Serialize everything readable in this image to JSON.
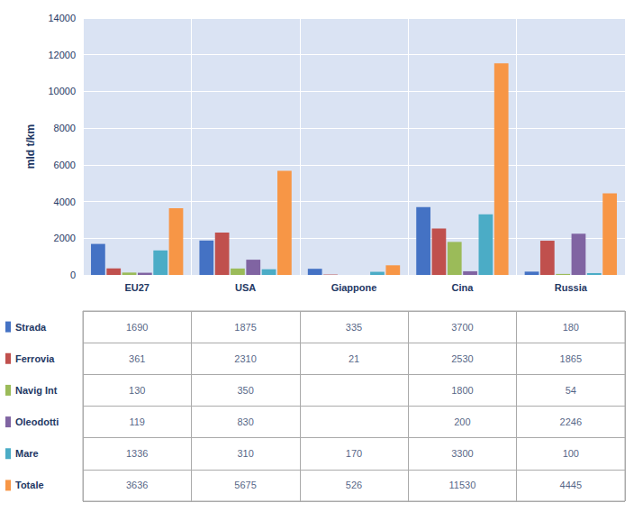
{
  "chart_data": {
    "type": "bar",
    "ylabel": "mld t/km",
    "categories": [
      "EU27",
      "USA",
      "Giappone",
      "Cina",
      "Russia"
    ],
    "series": [
      {
        "name": "Strada",
        "color": "#4472C4",
        "values": [
          1690,
          1875,
          335,
          3700,
          180
        ],
        "value_labels": [
          "1690",
          "1875",
          "335",
          "3700",
          "180"
        ]
      },
      {
        "name": "Ferrovia",
        "color": "#C0504D",
        "values": [
          361,
          2310,
          21,
          2530,
          1865
        ],
        "value_labels": [
          "361",
          "2310",
          "21",
          "2530",
          "1865"
        ]
      },
      {
        "name": "Navig Int",
        "color": "#9BBB59",
        "values": [
          130,
          350,
          0,
          1800,
          54
        ],
        "value_labels": [
          "130",
          "350",
          null,
          "1800",
          "54"
        ]
      },
      {
        "name": "Oleodotti",
        "color": "#8064A2",
        "values": [
          119,
          830,
          0,
          200,
          2246
        ],
        "value_labels": [
          "119",
          "830",
          null,
          "200",
          "2246"
        ]
      },
      {
        "name": "Mare",
        "color": "#4BACC6",
        "values": [
          1336,
          310,
          170,
          3300,
          100
        ],
        "value_labels": [
          "1336",
          "310",
          "170",
          "3300",
          "100"
        ]
      },
      {
        "name": "Totale",
        "color": "#F79646",
        "values": [
          3636,
          5675,
          526,
          11530,
          4445
        ],
        "value_labels": [
          "3636",
          "5675",
          "526",
          "11530",
          "4445"
        ]
      }
    ],
    "ylim": [
      0,
      14000
    ],
    "yticks": [
      0,
      2000,
      4000,
      6000,
      8000,
      10000,
      12000,
      14000
    ],
    "grid": true
  }
}
